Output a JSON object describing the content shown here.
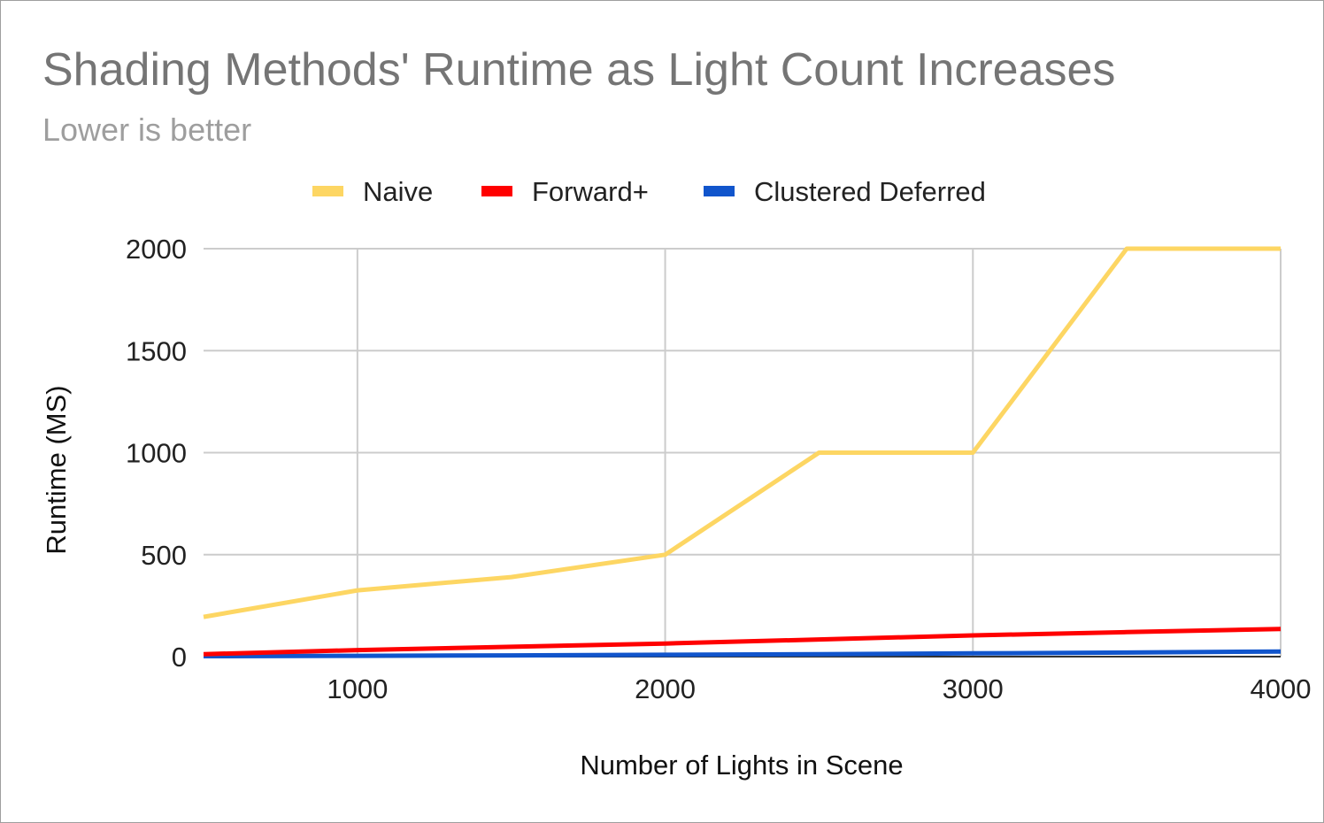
{
  "chart_data": {
    "type": "line",
    "title": "Shading Methods' Runtime as Light Count Increases",
    "subtitle": "Lower is better",
    "xlabel": "Number of Lights in Scene",
    "ylabel": "Runtime (MS)",
    "xlim": [
      500,
      4000
    ],
    "ylim": [
      0,
      2000
    ],
    "xticks": [
      1000,
      2000,
      3000,
      4000
    ],
    "yticks": [
      0,
      500,
      1000,
      1500,
      2000
    ],
    "grid": true,
    "legend_position": "top",
    "x": [
      500,
      1000,
      1500,
      2000,
      2500,
      3000,
      3500,
      4000
    ],
    "series": [
      {
        "name": "Naive",
        "color": "#fdd663",
        "values": [
          195,
          325,
          390,
          500,
          1000,
          1000,
          2000,
          2000
        ]
      },
      {
        "name": "Forward+",
        "color": "#ff0000",
        "values": [
          12,
          32,
          48,
          64,
          84,
          104,
          120,
          136
        ]
      },
      {
        "name": "Clustered Deferred",
        "color": "#1155cc",
        "values": [
          2,
          4,
          6,
          9,
          12,
          16,
          20,
          25
        ]
      }
    ]
  }
}
